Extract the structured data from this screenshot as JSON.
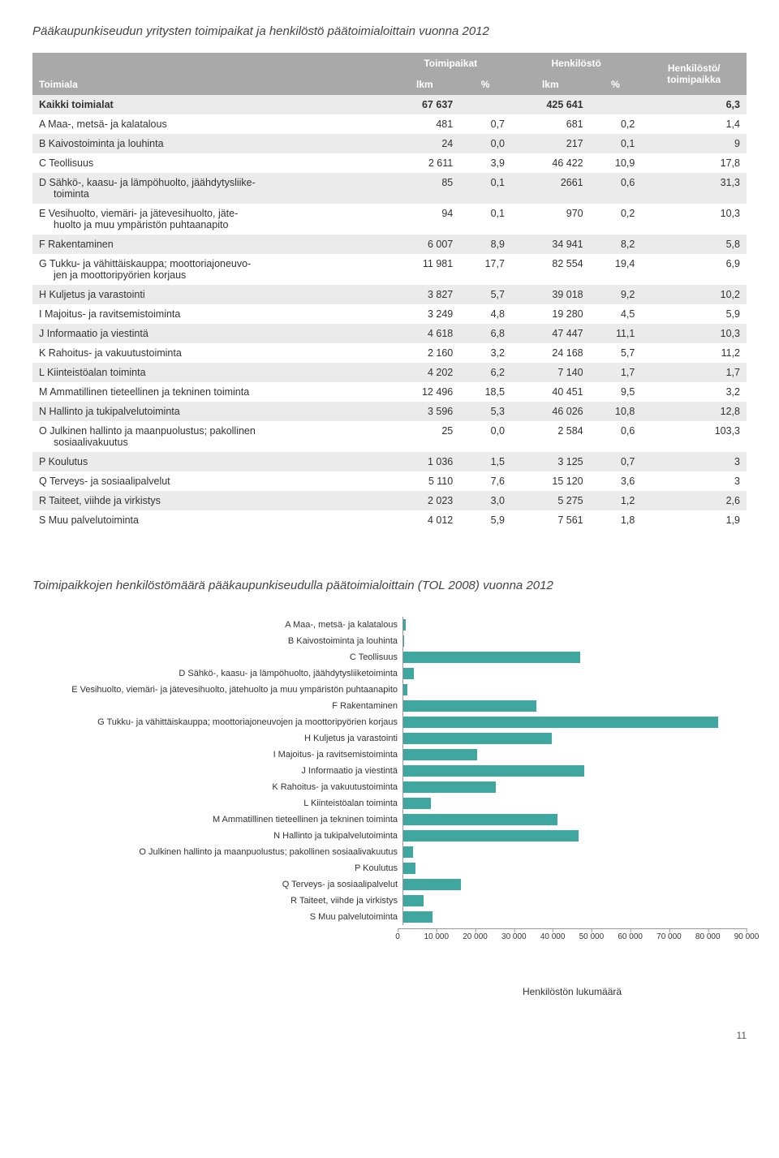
{
  "table": {
    "title": "Pääkaupunkiseudun yritysten toimipaikat ja henkilöstö päätoimialoittain vuonna 2012",
    "header_group1": "Toimipaikat",
    "header_group2": "Henkilöstö",
    "header_ratio_l1": "Henkilöstö/",
    "header_ratio_l2": "toimipaikka",
    "header_toimiala": "Toimiala",
    "header_lkm": "lkm",
    "header_pct": "%",
    "rows": [
      {
        "label": "Kaikki toimialat",
        "lkm1": "67 637",
        "pct1": "",
        "lkm2": "425 641",
        "pct2": "",
        "ratio": "6,3",
        "total": true
      },
      {
        "label": "A Maa-, metsä- ja kalatalous",
        "lkm1": "481",
        "pct1": "0,7",
        "lkm2": "681",
        "pct2": "0,2",
        "ratio": "1,4"
      },
      {
        "label": "B Kaivostoiminta ja louhinta",
        "lkm1": "24",
        "pct1": "0,0",
        "lkm2": "217",
        "pct2": "0,1",
        "ratio": "9"
      },
      {
        "label": "C Teollisuus",
        "lkm1": "2 611",
        "pct1": "3,9",
        "lkm2": "46 422",
        "pct2": "10,9",
        "ratio": "17,8"
      },
      {
        "label": "D Sähkö-, kaasu- ja lämpöhuolto, jäähdytysliike-",
        "sub": "toiminta",
        "lkm1": "85",
        "pct1": "0,1",
        "lkm2": "2661",
        "pct2": "0,6",
        "ratio": "31,3"
      },
      {
        "label": "E Vesihuolto, viemäri- ja jätevesihuolto, jäte-",
        "sub": "huolto ja muu ympäristön puhtaanapito",
        "lkm1": "94",
        "pct1": "0,1",
        "lkm2": "970",
        "pct2": "0,2",
        "ratio": "10,3"
      },
      {
        "label": "F Rakentaminen",
        "lkm1": "6 007",
        "pct1": "8,9",
        "lkm2": "34 941",
        "pct2": "8,2",
        "ratio": "5,8"
      },
      {
        "label": "G Tukku- ja vähittäiskauppa; moottoriajoneuvo-",
        "sub": "jen ja moottoripyörien korjaus",
        "lkm1": "11 981",
        "pct1": "17,7",
        "lkm2": "82 554",
        "pct2": "19,4",
        "ratio": "6,9"
      },
      {
        "label": "H Kuljetus ja varastointi",
        "lkm1": "3 827",
        "pct1": "5,7",
        "lkm2": "39 018",
        "pct2": "9,2",
        "ratio": "10,2"
      },
      {
        "label": "I Majoitus- ja ravitsemistoiminta",
        "lkm1": "3 249",
        "pct1": "4,8",
        "lkm2": "19 280",
        "pct2": "4,5",
        "ratio": "5,9"
      },
      {
        "label": "J Informaatio ja viestintä",
        "lkm1": "4 618",
        "pct1": "6,8",
        "lkm2": "47 447",
        "pct2": "11,1",
        "ratio": "10,3"
      },
      {
        "label": "K Rahoitus- ja vakuutustoiminta",
        "lkm1": "2 160",
        "pct1": "3,2",
        "lkm2": "24 168",
        "pct2": "5,7",
        "ratio": "11,2"
      },
      {
        "label": "L Kiinteistöalan toiminta",
        "lkm1": "4 202",
        "pct1": "6,2",
        "lkm2": "7 140",
        "pct2": "1,7",
        "ratio": "1,7"
      },
      {
        "label": "M Ammatillinen tieteellinen ja tekninen toiminta",
        "lkm1": "12 496",
        "pct1": "18,5",
        "lkm2": "40 451",
        "pct2": "9,5",
        "ratio": "3,2"
      },
      {
        "label": "N Hallinto ja tukipalvelutoiminta",
        "lkm1": "3 596",
        "pct1": "5,3",
        "lkm2": "46 026",
        "pct2": "10,8",
        "ratio": "12,8"
      },
      {
        "label": "O Julkinen hallinto ja maanpuolustus; pakollinen",
        "sub": "sosiaalivakuutus",
        "lkm1": "25",
        "pct1": "0,0",
        "lkm2": "2 584",
        "pct2": "0,6",
        "ratio": "103,3"
      },
      {
        "label": "P Koulutus",
        "lkm1": "1 036",
        "pct1": "1,5",
        "lkm2": "3 125",
        "pct2": "0,7",
        "ratio": "3"
      },
      {
        "label": "Q Terveys- ja sosiaalipalvelut",
        "lkm1": "5 110",
        "pct1": "7,6",
        "lkm2": "15 120",
        "pct2": "3,6",
        "ratio": "3"
      },
      {
        "label": "R Taiteet, viihde ja virkistys",
        "lkm1": "2 023",
        "pct1": "3,0",
        "lkm2": "5 275",
        "pct2": "1,2",
        "ratio": "2,6"
      },
      {
        "label": "S Muu palvelutoiminta",
        "lkm1": "4 012",
        "pct1": "5,9",
        "lkm2": "7 561",
        "pct2": "1,8",
        "ratio": "1,9"
      }
    ],
    "stripe_color": "#ebebeb",
    "header_bg": "#a9a9a9",
    "header_fg": "#ffffff"
  },
  "chart": {
    "title": "Toimipaikkojen henkilöstömäärä pääkaupunkiseudulla päätoimialoittain (TOL 2008) vuonna 2012",
    "type": "horizontal-bar",
    "bar_color": "#3fa7a0",
    "axis_color": "#999999",
    "label_fontsize": 11,
    "xmax": 90000,
    "xtick_step": 10000,
    "xticks": [
      "0",
      "10 000",
      "20 000",
      "30 000",
      "40 000",
      "50 000",
      "60 000",
      "70 000",
      "80 000",
      "90 000"
    ],
    "xlabel": "Henkilöstön lukumäärä",
    "series": [
      {
        "label": "A Maa-, metsä- ja kalatalous",
        "value": 681
      },
      {
        "label": "B Kaivostoiminta ja louhinta",
        "value": 217
      },
      {
        "label": "C Teollisuus",
        "value": 46422
      },
      {
        "label": "D Sähkö-, kaasu- ja lämpöhuolto, jäähdytysliiketoiminta",
        "value": 2661
      },
      {
        "label": "E Vesihuolto, viemäri- ja jätevesihuolto, jätehuolto ja muu ympäristön puhtaanapito",
        "value": 970
      },
      {
        "label": "F Rakentaminen",
        "value": 34941
      },
      {
        "label": "G Tukku- ja vähittäiskauppa; moottoriajoneuvojen ja moottoripyörien korjaus",
        "value": 82554
      },
      {
        "label": "H Kuljetus ja varastointi",
        "value": 39018
      },
      {
        "label": "I Majoitus- ja ravitsemistoiminta",
        "value": 19280
      },
      {
        "label": "J Informaatio ja viestintä",
        "value": 47447
      },
      {
        "label": "K Rahoitus- ja vakuutustoiminta",
        "value": 24168
      },
      {
        "label": "L Kiinteistöalan toiminta",
        "value": 7140
      },
      {
        "label": "M Ammatillinen tieteellinen ja tekninen toiminta",
        "value": 40451
      },
      {
        "label": "N Hallinto ja tukipalvelutoiminta",
        "value": 46026
      },
      {
        "label": "O Julkinen hallinto ja maanpuolustus; pakollinen sosiaalivakuutus",
        "value": 2584
      },
      {
        "label": "P Koulutus",
        "value": 3125
      },
      {
        "label": "Q Terveys- ja sosiaalipalvelut",
        "value": 15120
      },
      {
        "label": "R Taiteet, viihde ja virkistys",
        "value": 5275
      },
      {
        "label": "S Muu palvelutoiminta",
        "value": 7561
      }
    ]
  },
  "page_number": "11"
}
